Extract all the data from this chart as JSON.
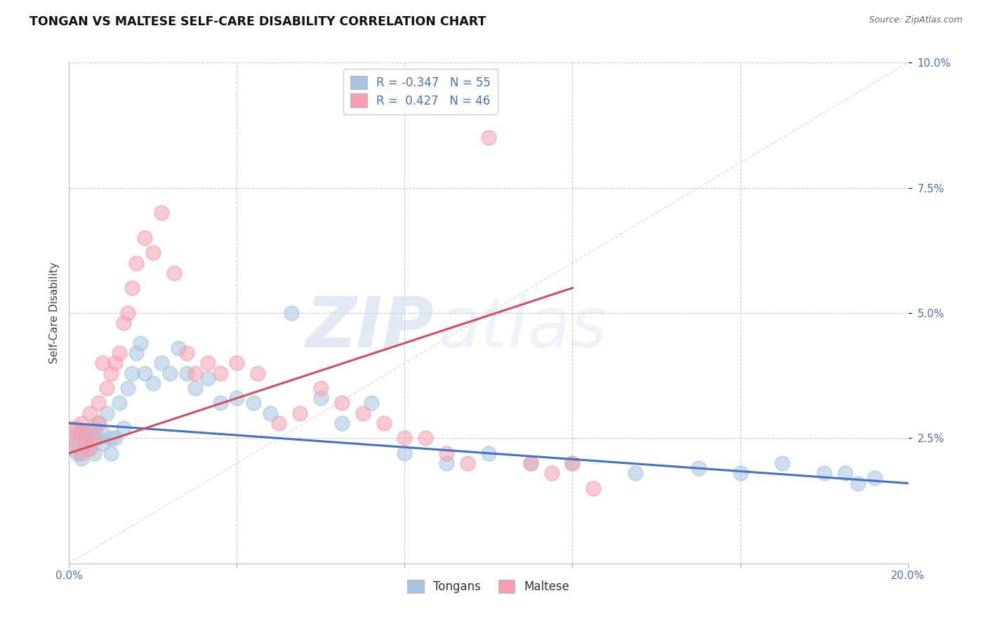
{
  "title": "TONGAN VS MALTESE SELF-CARE DISABILITY CORRELATION CHART",
  "source": "Source: ZipAtlas.com",
  "ylabel": "Self-Care Disability",
  "xlim": [
    0.0,
    0.2
  ],
  "ylim": [
    0.0,
    0.1
  ],
  "tongan_color": "#a8c4e0",
  "maltese_color": "#f4a0b0",
  "tongan_line_color": "#4472c4",
  "maltese_line_color": "#d05060",
  "tongan_R": -0.347,
  "tongan_N": 55,
  "maltese_R": 0.427,
  "maltese_N": 46,
  "legend_label1": "Tongans",
  "legend_label2": "Maltese",
  "background_color": "#ffffff",
  "grid_color": "#cccccc",
  "diagonal_line_color": "#cccccc",
  "tongan_x": [
    0.001,
    0.001,
    0.002,
    0.002,
    0.003,
    0.003,
    0.004,
    0.004,
    0.005,
    0.005,
    0.006,
    0.006,
    0.007,
    0.007,
    0.008,
    0.008,
    0.009,
    0.01,
    0.01,
    0.011,
    0.012,
    0.013,
    0.014,
    0.015,
    0.016,
    0.017,
    0.018,
    0.02,
    0.022,
    0.024,
    0.026,
    0.028,
    0.03,
    0.033,
    0.036,
    0.04,
    0.044,
    0.048,
    0.053,
    0.06,
    0.065,
    0.072,
    0.08,
    0.09,
    0.1,
    0.11,
    0.12,
    0.135,
    0.15,
    0.16,
    0.17,
    0.18,
    0.185,
    0.188,
    0.192
  ],
  "tongan_y": [
    0.025,
    0.023,
    0.027,
    0.022,
    0.026,
    0.021,
    0.025,
    0.024,
    0.026,
    0.023,
    0.027,
    0.022,
    0.025,
    0.028,
    0.024,
    0.026,
    0.03,
    0.025,
    0.022,
    0.025,
    0.032,
    0.027,
    0.035,
    0.038,
    0.042,
    0.044,
    0.038,
    0.036,
    0.04,
    0.038,
    0.043,
    0.038,
    0.035,
    0.037,
    0.032,
    0.033,
    0.032,
    0.03,
    0.05,
    0.033,
    0.028,
    0.032,
    0.022,
    0.02,
    0.022,
    0.02,
    0.02,
    0.018,
    0.019,
    0.018,
    0.02,
    0.018,
    0.018,
    0.016,
    0.017
  ],
  "maltese_x": [
    0.001,
    0.001,
    0.002,
    0.003,
    0.003,
    0.004,
    0.004,
    0.005,
    0.005,
    0.006,
    0.007,
    0.007,
    0.008,
    0.009,
    0.01,
    0.011,
    0.012,
    0.013,
    0.014,
    0.015,
    0.016,
    0.018,
    0.02,
    0.022,
    0.025,
    0.028,
    0.03,
    0.033,
    0.036,
    0.04,
    0.045,
    0.05,
    0.055,
    0.06,
    0.065,
    0.07,
    0.075,
    0.08,
    0.085,
    0.09,
    0.095,
    0.1,
    0.11,
    0.115,
    0.12,
    0.125
  ],
  "maltese_y": [
    0.027,
    0.024,
    0.026,
    0.028,
    0.022,
    0.026,
    0.024,
    0.03,
    0.023,
    0.025,
    0.032,
    0.028,
    0.04,
    0.035,
    0.038,
    0.04,
    0.042,
    0.048,
    0.05,
    0.055,
    0.06,
    0.065,
    0.062,
    0.07,
    0.058,
    0.042,
    0.038,
    0.04,
    0.038,
    0.04,
    0.038,
    0.028,
    0.03,
    0.035,
    0.032,
    0.03,
    0.028,
    0.025,
    0.025,
    0.022,
    0.02,
    0.085,
    0.02,
    0.018,
    0.02,
    0.015
  ],
  "tongan_regline_x": [
    0.0,
    0.2
  ],
  "tongan_regline_y": [
    0.028,
    0.016
  ],
  "maltese_regline_x": [
    0.0,
    0.12
  ],
  "maltese_regline_y": [
    0.022,
    0.055
  ]
}
